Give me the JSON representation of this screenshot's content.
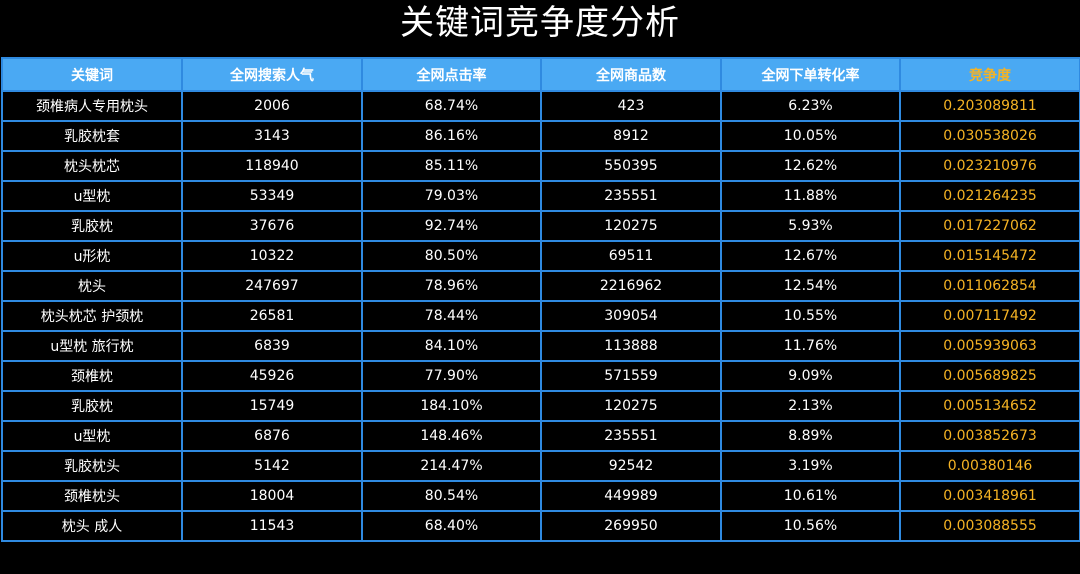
{
  "title": "关键词竞争度分析",
  "colors": {
    "background": "#000000",
    "header_bg": "#4aa9f3",
    "border": "#2f8ae0",
    "highlight": "#f5b324",
    "text": "#ffffff"
  },
  "table": {
    "columns": [
      "关键词",
      "全网搜索人气",
      "全网点击率",
      "全网商品数",
      "全网下单转化率",
      "竞争度"
    ],
    "rows": [
      [
        "颈椎病人专用枕头",
        "2006",
        "68.74%",
        "423",
        "6.23%",
        "0.203089811"
      ],
      [
        "乳胶枕套",
        "3143",
        "86.16%",
        "8912",
        "10.05%",
        "0.030538026"
      ],
      [
        "枕头枕芯",
        "118940",
        "85.11%",
        "550395",
        "12.62%",
        "0.023210976"
      ],
      [
        "u型枕",
        "53349",
        "79.03%",
        "235551",
        "11.88%",
        "0.021264235"
      ],
      [
        "乳胶枕",
        "37676",
        "92.74%",
        "120275",
        "5.93%",
        "0.017227062"
      ],
      [
        "u形枕",
        "10322",
        "80.50%",
        "69511",
        "12.67%",
        "0.015145472"
      ],
      [
        "枕头",
        "247697",
        "78.96%",
        "2216962",
        "12.54%",
        "0.011062854"
      ],
      [
        "枕头枕芯 护颈枕",
        "26581",
        "78.44%",
        "309054",
        "10.55%",
        "0.007117492"
      ],
      [
        "u型枕 旅行枕",
        "6839",
        "84.10%",
        "113888",
        "11.76%",
        "0.005939063"
      ],
      [
        "颈椎枕",
        "45926",
        "77.90%",
        "571559",
        "9.09%",
        "0.005689825"
      ],
      [
        "乳胶枕",
        "15749",
        "184.10%",
        "120275",
        "2.13%",
        "0.005134652"
      ],
      [
        "u型枕",
        "6876",
        "148.46%",
        "235551",
        "8.89%",
        "0.003852673"
      ],
      [
        "乳胶枕头",
        "5142",
        "214.47%",
        "92542",
        "3.19%",
        "0.00380146"
      ],
      [
        "颈椎枕头",
        "18004",
        "80.54%",
        "449989",
        "10.61%",
        "0.003418961"
      ],
      [
        "枕头 成人",
        "11543",
        "68.40%",
        "269950",
        "10.56%",
        "0.003088555"
      ]
    ]
  }
}
